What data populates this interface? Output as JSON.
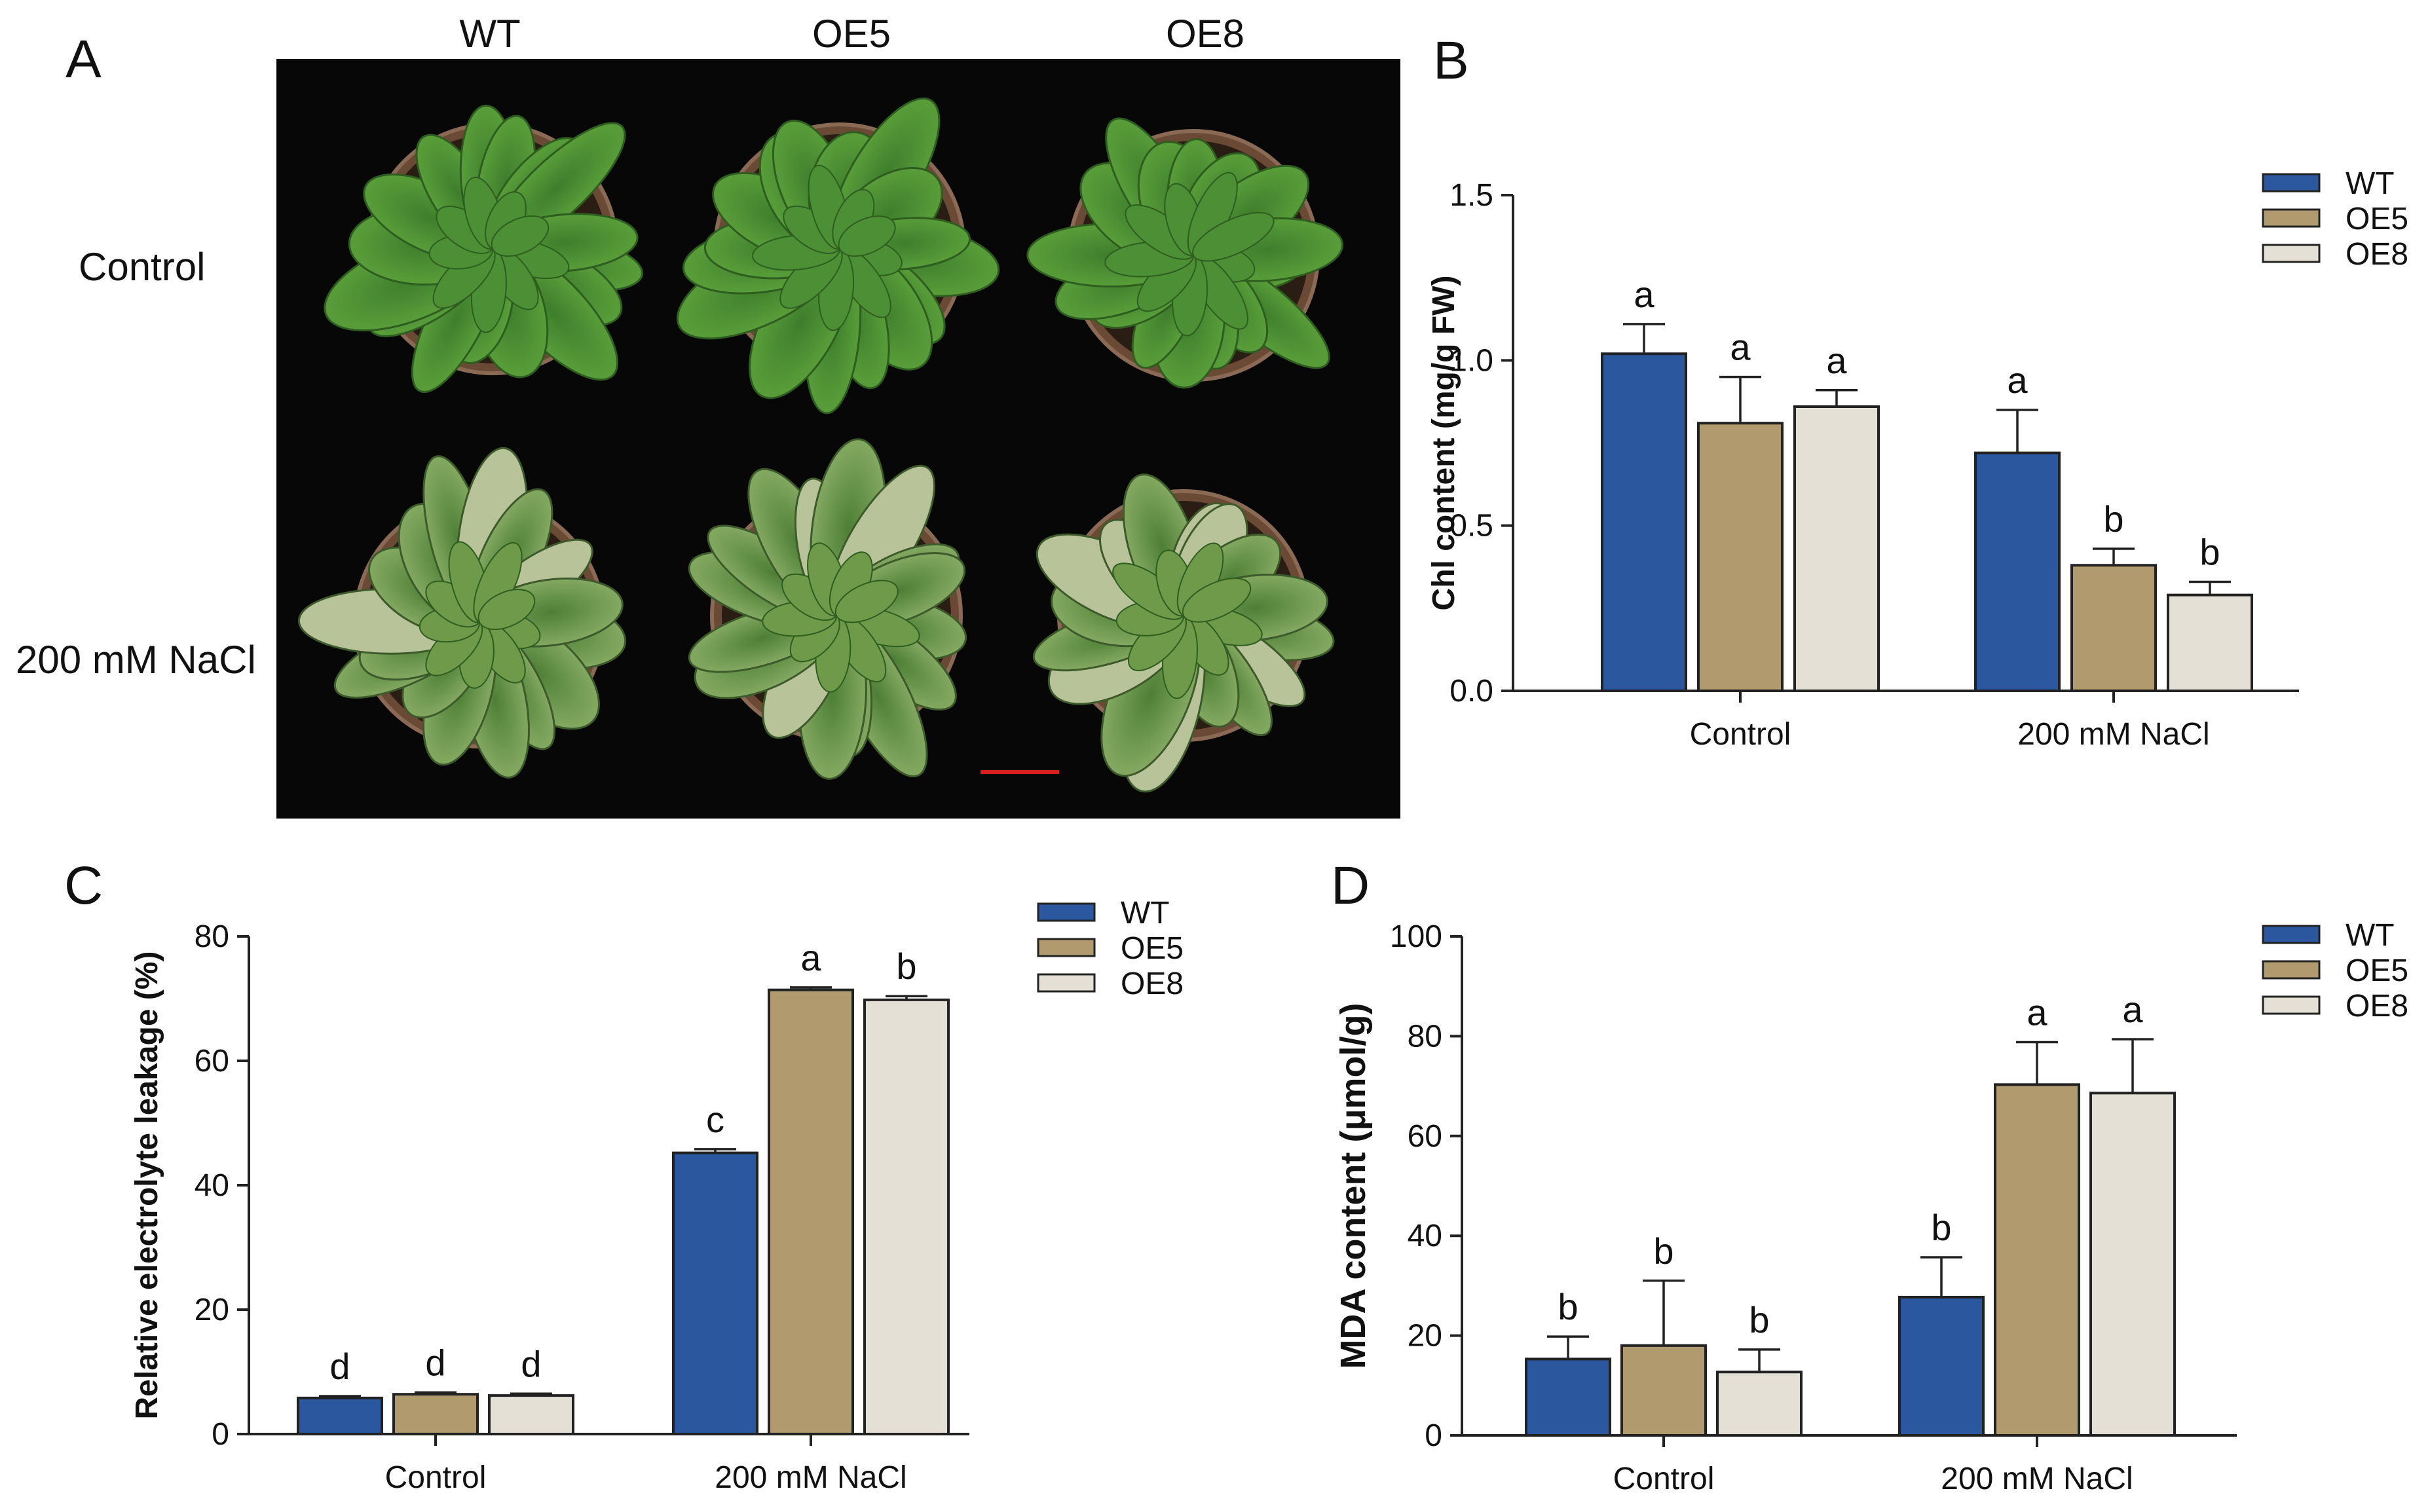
{
  "figure": {
    "panel_a": {
      "letter": "A",
      "columns": [
        "WT",
        "OE5",
        "OE8"
      ],
      "rows": [
        "Control",
        "200 mM NaCl"
      ]
    }
  },
  "chart_data": [
    {
      "panel": "B",
      "type": "bar",
      "categories": [
        "Control",
        "200 mM NaCl"
      ],
      "ylabel": "Chl content (mg/g FW)",
      "ylim": [
        0,
        1.5
      ],
      "yticks": [
        "0.0",
        "0.5",
        "1.0",
        "1.5"
      ],
      "series": [
        {
          "name": "WT",
          "values": [
            1.02,
            0.72
          ],
          "errors": [
            0.09,
            0.13
          ],
          "letters": [
            "a",
            "a"
          ]
        },
        {
          "name": "OE5",
          "values": [
            0.81,
            0.38
          ],
          "errors": [
            0.14,
            0.05
          ],
          "letters": [
            "a",
            "b"
          ]
        },
        {
          "name": "OE8",
          "values": [
            0.86,
            0.29
          ],
          "errors": [
            0.05,
            0.04
          ],
          "letters": [
            "a",
            "b"
          ]
        }
      ],
      "legend_position": "top-right"
    },
    {
      "panel": "C",
      "type": "bar",
      "categories": [
        "Control",
        "200 mM NaCl"
      ],
      "ylabel": "Relative electrolyte leakage (%)",
      "ylim": [
        0,
        80
      ],
      "yticks": [
        "0",
        "20",
        "40",
        "60",
        "80"
      ],
      "series": [
        {
          "name": "WT",
          "values": [
            5.8,
            45.2
          ],
          "errors": [
            0.3,
            0.6
          ],
          "letters": [
            "d",
            "c"
          ]
        },
        {
          "name": "OE5",
          "values": [
            6.4,
            71.4
          ],
          "errors": [
            0.3,
            0.4
          ],
          "letters": [
            "d",
            "a"
          ]
        },
        {
          "name": "OE8",
          "values": [
            6.2,
            69.8
          ],
          "errors": [
            0.3,
            0.6
          ],
          "letters": [
            "d",
            "b"
          ]
        }
      ],
      "legend_position": "top-right"
    },
    {
      "panel": "D",
      "type": "bar",
      "categories": [
        "Control",
        "200 mM NaCl"
      ],
      "ylabel": "MDA content (μmol/g)",
      "ylim": [
        0,
        100
      ],
      "yticks": [
        "0",
        "20",
        "40",
        "60",
        "80",
        "100"
      ],
      "series": [
        {
          "name": "WT",
          "values": [
            15.3,
            27.7
          ],
          "errors": [
            4.5,
            8.0
          ],
          "letters": [
            "b",
            "b"
          ]
        },
        {
          "name": "OE5",
          "values": [
            18.0,
            70.3
          ],
          "errors": [
            13.0,
            8.5
          ],
          "letters": [
            "b",
            "a"
          ]
        },
        {
          "name": "OE8",
          "values": [
            12.7,
            68.6
          ],
          "errors": [
            4.5,
            10.8
          ],
          "letters": [
            "b",
            "a"
          ]
        }
      ],
      "legend_position": "top-right"
    }
  ],
  "colors": {
    "WT": "#2b579e",
    "OE5": "#b09a6e",
    "OE8": "#e4e0d6",
    "photo_background": "#070707",
    "scale_bar": "#d61f1f"
  }
}
